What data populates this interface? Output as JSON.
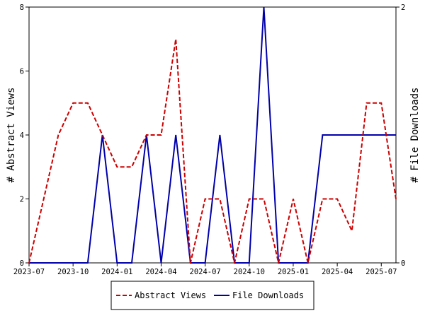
{
  "chart_data": {
    "type": "line",
    "x": [
      "2023-07",
      "2023-08",
      "2023-09",
      "2023-10",
      "2023-11",
      "2023-12",
      "2024-01",
      "2024-02",
      "2024-03",
      "2024-04",
      "2024-05",
      "2024-06",
      "2024-07",
      "2024-08",
      "2024-09",
      "2024-10",
      "2024-11",
      "2024-12",
      "2025-01",
      "2025-02",
      "2025-03",
      "2025-04",
      "2025-05",
      "2025-06",
      "2025-07",
      "2025-08"
    ],
    "x_ticks": [
      "2023-07",
      "2023-10",
      "2024-01",
      "2024-04",
      "2024-07",
      "2024-10",
      "2025-01",
      "2025-04",
      "2025-07"
    ],
    "series": [
      {
        "name": "Abstract Views",
        "axis": "left",
        "color": "#cc0000",
        "dash": "dashed",
        "values": [
          0,
          2,
          4,
          5,
          5,
          4,
          3,
          3,
          4,
          4,
          7,
          0,
          2,
          2,
          0,
          2,
          2,
          0,
          2,
          0,
          2,
          2,
          1,
          5,
          5,
          2
        ]
      },
      {
        "name": "File Downloads",
        "axis": "right",
        "color": "#0000aa",
        "dash": "solid",
        "values": [
          0,
          0,
          0,
          0,
          0,
          1,
          0,
          0,
          1,
          0,
          1,
          0,
          0,
          1,
          0,
          0,
          2,
          0,
          0,
          0,
          1,
          1,
          1,
          1,
          1,
          1
        ]
      }
    ],
    "ylabel": "# Abstract Views",
    "y2label": "# File Downloads",
    "ylim": [
      0,
      8
    ],
    "y_ticks": [
      "0",
      "2",
      "4",
      "6",
      "8"
    ],
    "y2lim": [
      0,
      2
    ],
    "y2_ticks": [
      "0",
      "2"
    ],
    "grid": false,
    "legend_position": "bottom-center"
  }
}
